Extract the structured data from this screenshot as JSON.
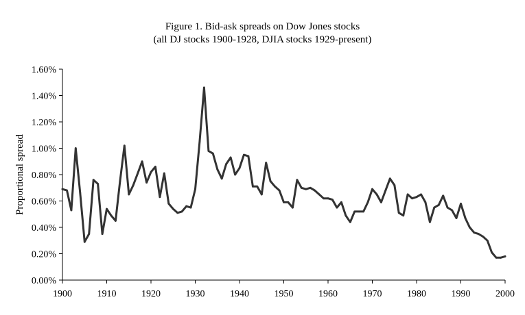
{
  "chart_data": {
    "type": "line",
    "title": "Figure 1.  Bid-ask spreads on Dow Jones stocks",
    "subtitle": "(all DJ stocks 1900-1928, DJIA stocks 1929-present)",
    "xlabel": "",
    "ylabel": "Proportional spread",
    "xlim": [
      1900,
      2000
    ],
    "ylim": [
      0,
      1.6
    ],
    "x_ticks": [
      "1900",
      "1910",
      "1920",
      "1930",
      "1940",
      "1950",
      "1960",
      "1970",
      "1980",
      "1990",
      "2000"
    ],
    "y_ticks": [
      "0.00%",
      "0.20%",
      "0.40%",
      "0.60%",
      "0.80%",
      "1.00%",
      "1.20%",
      "1.40%",
      "1.60%"
    ],
    "grid": false,
    "legend": "none",
    "line_color": "#333333",
    "series": [
      {
        "x": [
          1900,
          1901,
          1902,
          1903,
          1904,
          1905,
          1906,
          1907,
          1908,
          1909,
          1910,
          1911,
          1912,
          1913,
          1914,
          1915,
          1916,
          1917,
          1918,
          1919,
          1920,
          1921,
          1922,
          1923,
          1924,
          1925,
          1926,
          1927,
          1928,
          1929,
          1930,
          1931,
          1932,
          1933,
          1934,
          1935,
          1936,
          1937,
          1938,
          1939,
          1940,
          1941,
          1942,
          1943,
          1944,
          1945,
          1946,
          1947,
          1948,
          1949,
          1950,
          1951,
          1952,
          1953,
          1954,
          1955,
          1956,
          1957,
          1958,
          1959,
          1960,
          1961,
          1962,
          1963,
          1964,
          1965,
          1966,
          1967,
          1968,
          1969,
          1970,
          1971,
          1972,
          1973,
          1974,
          1975,
          1976,
          1977,
          1978,
          1979,
          1980,
          1981,
          1982,
          1983,
          1984,
          1985,
          1986,
          1987,
          1988,
          1989,
          1990,
          1991,
          1992,
          1993,
          1994,
          1995,
          1996,
          1997,
          1998,
          1999,
          2000
        ],
        "values": [
          0.69,
          0.68,
          0.53,
          1.0,
          0.66,
          0.29,
          0.35,
          0.76,
          0.73,
          0.35,
          0.54,
          0.49,
          0.45,
          0.75,
          1.02,
          0.65,
          0.72,
          0.81,
          0.9,
          0.74,
          0.82,
          0.86,
          0.63,
          0.81,
          0.58,
          0.54,
          0.51,
          0.52,
          0.56,
          0.55,
          0.69,
          1.05,
          1.46,
          0.98,
          0.96,
          0.84,
          0.77,
          0.88,
          0.93,
          0.8,
          0.85,
          0.95,
          0.94,
          0.71,
          0.71,
          0.65,
          0.89,
          0.75,
          0.71,
          0.68,
          0.59,
          0.59,
          0.55,
          0.76,
          0.7,
          0.69,
          0.7,
          0.68,
          0.65,
          0.62,
          0.62,
          0.61,
          0.55,
          0.59,
          0.49,
          0.44,
          0.52,
          0.52,
          0.52,
          0.59,
          0.69,
          0.65,
          0.59,
          0.68,
          0.77,
          0.72,
          0.51,
          0.49,
          0.65,
          0.62,
          0.63,
          0.65,
          0.59,
          0.44,
          0.55,
          0.57,
          0.64,
          0.55,
          0.53,
          0.47,
          0.58,
          0.47,
          0.4,
          0.36,
          0.35,
          0.33,
          0.3,
          0.21,
          0.17,
          0.17,
          0.18
        ]
      }
    ]
  }
}
